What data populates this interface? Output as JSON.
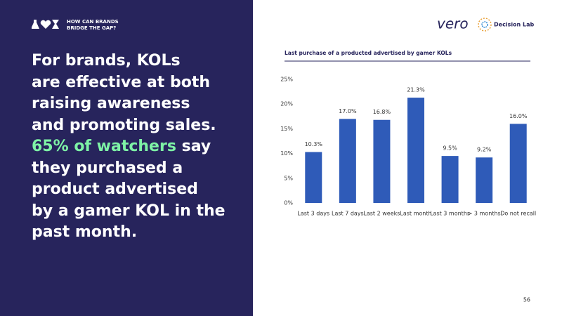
{
  "header": {
    "tagline": "HOW CAN BRANDS BRIDGE THE GAP?"
  },
  "headline": {
    "lines_before": [
      "For brands, KOLs",
      "are effective at both",
      "raising awareness",
      "and promoting sales."
    ],
    "highlight": "65% of watchers",
    "after_highlight": "say",
    "lines_after": [
      "they purchased a",
      "product advertised",
      "by a gamer KOL in the",
      "past month."
    ]
  },
  "logos": {
    "brand": "vero",
    "partner": "Decision Lab"
  },
  "page_number": "56",
  "chart_data": {
    "type": "bar",
    "title": "Last purchase of a producted advertised by gamer KOLs",
    "categories": [
      "Last 3 days",
      "Last 7 days",
      "Last 2 weeks",
      "Last month",
      "Last 3 months",
      "> 3 months",
      "Do not recall"
    ],
    "values": [
      10.3,
      17.0,
      16.8,
      21.3,
      9.5,
      9.2,
      16.0
    ],
    "value_labels": [
      "10.3%",
      "17.0%",
      "16.8%",
      "21.3%",
      "9.5%",
      "9.2%",
      "16.0%"
    ],
    "color": "#2f5bb8",
    "ylim": [
      0,
      25
    ],
    "yticks": [
      {
        "value": 0,
        "label": "0%"
      },
      {
        "value": 5,
        "label": "5%"
      },
      {
        "value": 10,
        "label": "10%"
      },
      {
        "value": 15,
        "label": "15%"
      },
      {
        "value": 20,
        "label": "20%"
      },
      {
        "value": 25,
        "label": "25%"
      }
    ],
    "grid": false
  }
}
